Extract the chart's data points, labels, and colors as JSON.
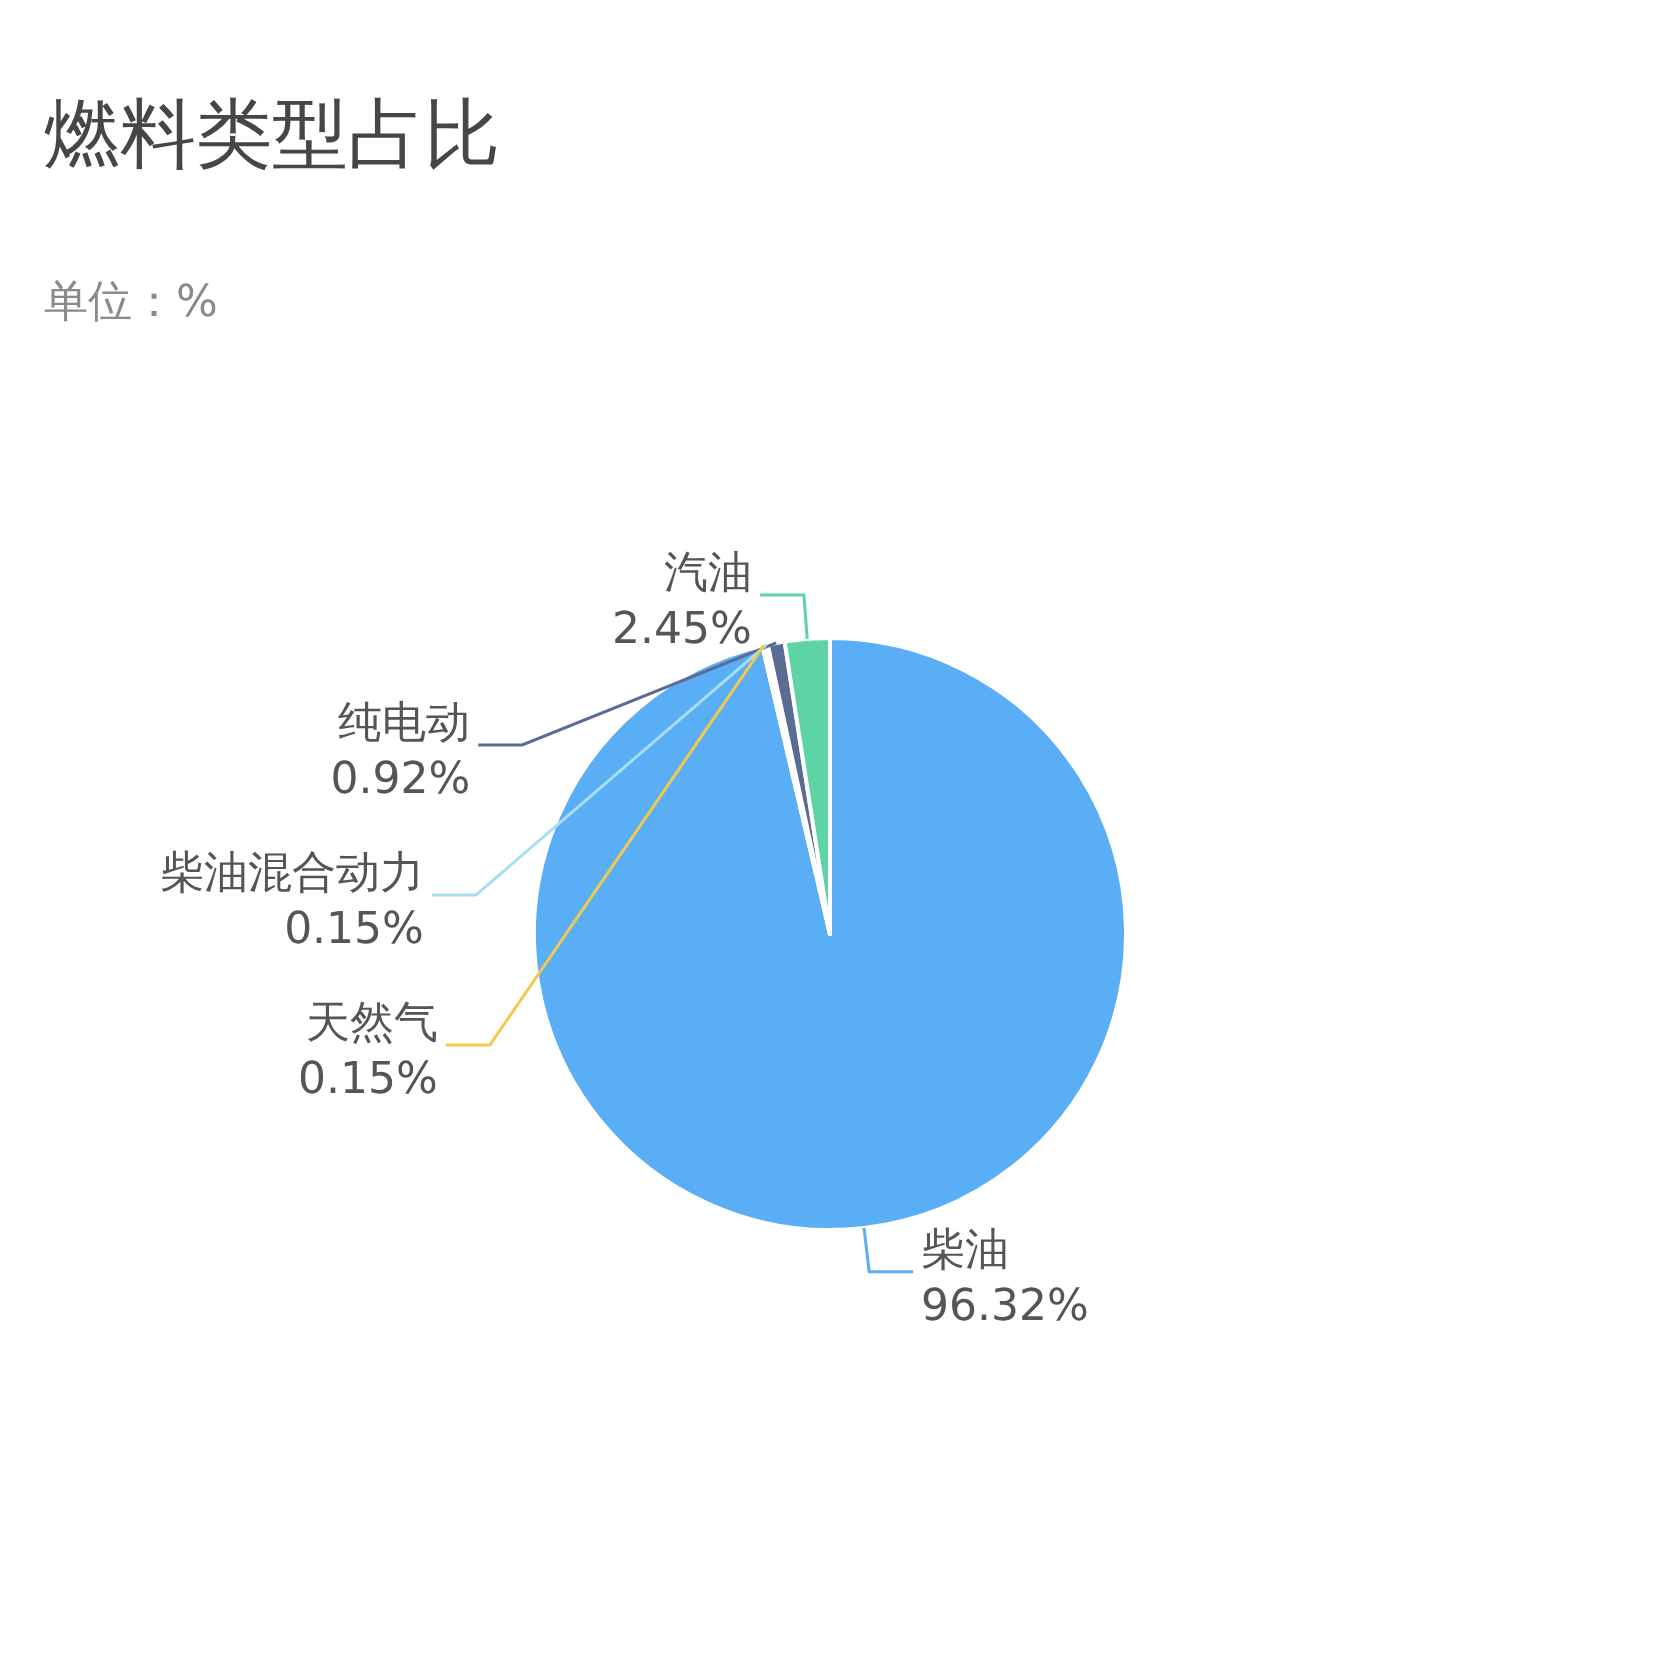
{
  "chart_data": {
    "type": "pie",
    "title": "燃料类型占比",
    "subtitle": "单位：%",
    "categories": [
      "柴油",
      "天然气",
      "柴油混合动力",
      "纯电动",
      "汽油"
    ],
    "values": [
      96.32,
      0.15,
      0.15,
      0.92,
      2.45
    ],
    "value_labels": [
      "96.32%",
      "0.15%",
      "0.15%",
      "0.92%",
      "2.45%"
    ],
    "colors": [
      "#5aaef5",
      "#f2c94c",
      "#a6def2",
      "#5b6c94",
      "#5dd3a6"
    ],
    "legend": false
  }
}
